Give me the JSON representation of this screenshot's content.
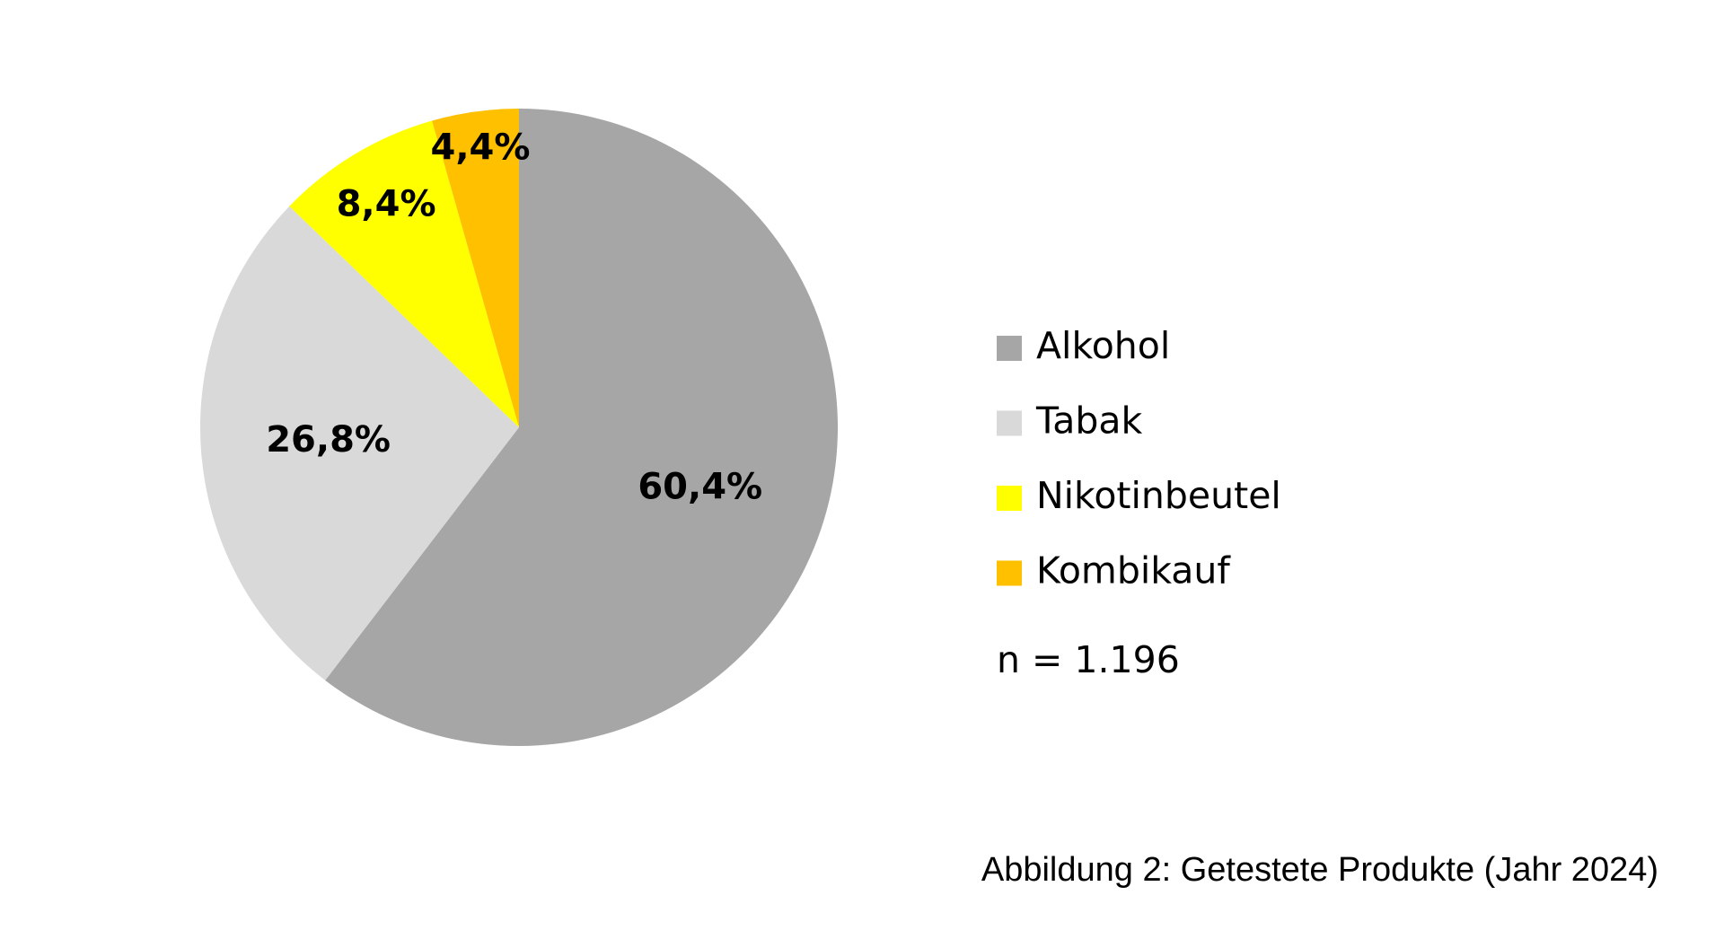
{
  "chart_data": {
    "type": "pie",
    "categories": [
      "Alkohol",
      "Tabak",
      "Nikotinbeutel",
      "Kombikauf"
    ],
    "values": [
      60.4,
      26.8,
      8.4,
      4.4
    ],
    "value_labels": [
      "60,4%",
      "26,8%",
      "8,4%",
      "4,4%"
    ],
    "colors": [
      "#a6a6a6",
      "#d9d9d9",
      "#ffff00",
      "#ffc000"
    ],
    "legend": "right",
    "annotation": "n = 1.196",
    "caption": "Abbildung 2: Getestete Produkte (Jahr 2024)"
  }
}
